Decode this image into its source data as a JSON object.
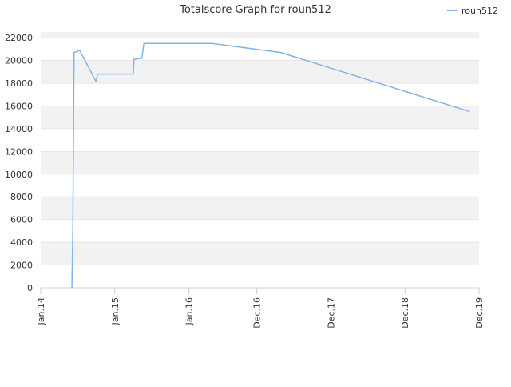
{
  "chart_data": {
    "type": "line",
    "title": "Totalscore Graph for roun512",
    "series": [
      {
        "name": "roun512",
        "color": "#7cb5ec",
        "x": [
          5.05,
          5.2,
          5.4,
          5.95,
          6.3,
          8.9,
          9.0,
          9.2,
          11.5,
          15.0,
          15.1,
          16.4,
          16.7,
          27.7,
          38.9,
          69.5
        ],
        "values": [
          0,
          5000,
          20700,
          20800,
          20900,
          18200,
          18200,
          18800,
          18800,
          18800,
          20100,
          20200,
          21500,
          21500,
          20700,
          15500
        ]
      }
    ],
    "xlim": [
      0,
      71
    ],
    "xticks": [
      {
        "value": 0,
        "label": "Jan.14"
      },
      {
        "value": 12,
        "label": "Jan.15"
      },
      {
        "value": 24,
        "label": "Jan.16"
      },
      {
        "value": 35,
        "label": "Dec.16"
      },
      {
        "value": 47,
        "label": "Dec.17"
      },
      {
        "value": 59,
        "label": "Dec.18"
      },
      {
        "value": 71,
        "label": "Dec.19"
      }
    ],
    "ylim": [
      0,
      22500
    ],
    "yticks": [
      0,
      2000,
      4000,
      6000,
      8000,
      10000,
      12000,
      14000,
      16000,
      18000,
      20000,
      22000
    ],
    "grid": true,
    "legend": "top-right"
  }
}
